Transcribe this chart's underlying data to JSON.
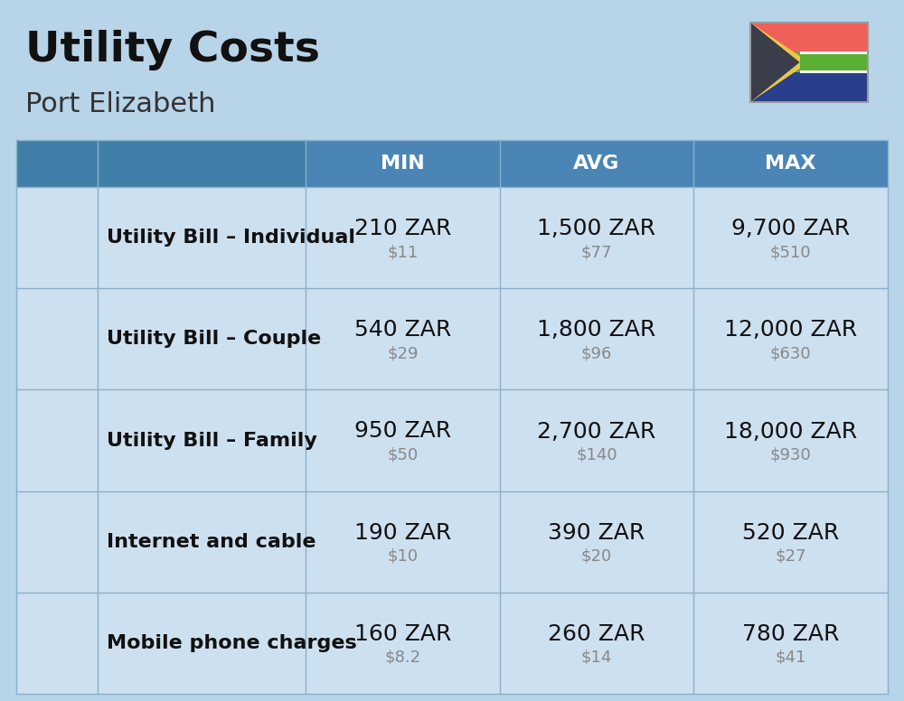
{
  "title": "Utility Costs",
  "subtitle": "Port Elizabeth",
  "background_color": "#b8d4e8",
  "header_bg_color": "#4a85b5",
  "header_text_color": "#ffffff",
  "row_bg_color": "#cde0f0",
  "col_divider_color": "#8ab0cc",
  "row_divider_color": "#8ab0cc",
  "headers": [
    "MIN",
    "AVG",
    "MAX"
  ],
  "rows": [
    {
      "label": "Utility Bill – Individual",
      "min_zar": "210 ZAR",
      "min_usd": "$11",
      "avg_zar": "1,500 ZAR",
      "avg_usd": "$77",
      "max_zar": "9,700 ZAR",
      "max_usd": "$510"
    },
    {
      "label": "Utility Bill – Couple",
      "min_zar": "540 ZAR",
      "min_usd": "$29",
      "avg_zar": "1,800 ZAR",
      "avg_usd": "$96",
      "max_zar": "12,000 ZAR",
      "max_usd": "$630"
    },
    {
      "label": "Utility Bill – Family",
      "min_zar": "950 ZAR",
      "min_usd": "$50",
      "avg_zar": "2,700 ZAR",
      "avg_usd": "$140",
      "max_zar": "18,000 ZAR",
      "max_usd": "$930"
    },
    {
      "label": "Internet and cable",
      "min_zar": "190 ZAR",
      "min_usd": "$10",
      "avg_zar": "390 ZAR",
      "avg_usd": "$20",
      "max_zar": "520 ZAR",
      "max_usd": "$27"
    },
    {
      "label": "Mobile phone charges",
      "min_zar": "160 ZAR",
      "min_usd": "$8.2",
      "avg_zar": "260 ZAR",
      "avg_usd": "$14",
      "max_zar": "780 ZAR",
      "max_usd": "$41"
    }
  ],
  "title_fontsize": 34,
  "subtitle_fontsize": 22,
  "header_fontsize": 16,
  "label_fontsize": 16,
  "value_fontsize": 18,
  "usd_fontsize": 13,
  "flag_colors": {
    "red": "#f0605a",
    "green_outer": "#5aaf32",
    "green_inner": "#5aaf32",
    "blue": "#293f8c",
    "black": "#3a3d4a",
    "gold": "#e8c84a",
    "white": "#ffffff"
  }
}
